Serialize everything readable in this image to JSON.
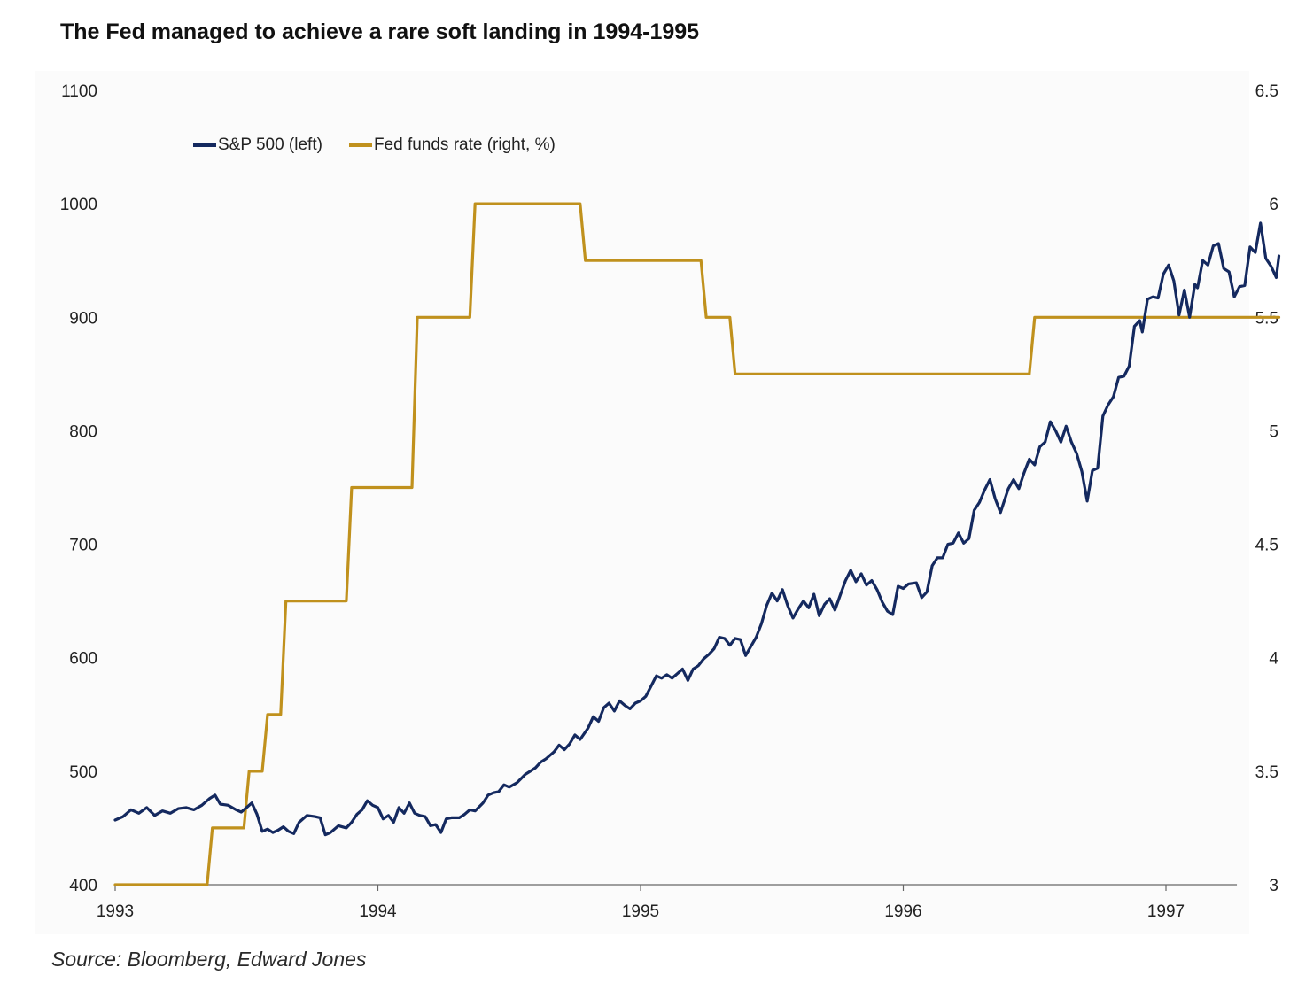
{
  "title": "The Fed managed to achieve a rare soft landing in 1994-1995",
  "source": "Source: Bloomberg, Edward Jones",
  "colors": {
    "sp500": "#14295f",
    "fed": "#c0911d",
    "axis": "#666666"
  },
  "chart_data": {
    "type": "line",
    "title": "The Fed managed to achieve a rare soft landing in 1994-1995",
    "legend_position": "top-left",
    "grid": false,
    "x_ticks": [
      "1993",
      "1994",
      "1995",
      "1996",
      "1997"
    ],
    "x_range": [
      1993.0,
      1997.27
    ],
    "y_left": {
      "range": [
        400,
        1100
      ],
      "ticks": [
        "400",
        "500",
        "600",
        "700",
        "800",
        "900",
        "1000",
        "1100"
      ]
    },
    "y_right": {
      "range": [
        3,
        6.5
      ],
      "ticks": [
        "3",
        "3.5",
        "4",
        "4.5",
        "5",
        "5.5",
        "6",
        "6.5"
      ]
    },
    "series": [
      {
        "name": "S&P 500 (left)",
        "axis": "left",
        "color": "#14295f",
        "points": [
          [
            1993.0,
            457
          ],
          [
            1993.03,
            460
          ],
          [
            1993.06,
            466
          ],
          [
            1993.09,
            463
          ],
          [
            1993.12,
            468
          ],
          [
            1993.15,
            461
          ],
          [
            1993.18,
            465
          ],
          [
            1993.21,
            463
          ],
          [
            1993.24,
            467
          ],
          [
            1993.27,
            468
          ],
          [
            1993.3,
            466
          ],
          [
            1993.33,
            470
          ],
          [
            1993.36,
            476
          ],
          [
            1993.38,
            479
          ],
          [
            1993.4,
            471
          ],
          [
            1993.43,
            470
          ],
          [
            1993.46,
            466
          ],
          [
            1993.48,
            464
          ],
          [
            1993.5,
            468
          ],
          [
            1993.52,
            472
          ],
          [
            1993.54,
            462
          ],
          [
            1993.56,
            447
          ],
          [
            1993.58,
            449
          ],
          [
            1993.6,
            446
          ],
          [
            1993.62,
            448
          ],
          [
            1993.64,
            451
          ],
          [
            1993.66,
            447
          ],
          [
            1993.68,
            445
          ],
          [
            1993.7,
            455
          ],
          [
            1993.73,
            461
          ],
          [
            1993.76,
            460
          ],
          [
            1993.78,
            459
          ],
          [
            1993.8,
            444
          ],
          [
            1993.82,
            446
          ],
          [
            1993.85,
            452
          ],
          [
            1993.88,
            450
          ],
          [
            1993.9,
            455
          ],
          [
            1993.92,
            462
          ],
          [
            1993.94,
            466
          ],
          [
            1993.96,
            474
          ],
          [
            1993.98,
            470
          ],
          [
            1994.0,
            468
          ],
          [
            1994.02,
            458
          ],
          [
            1994.04,
            461
          ],
          [
            1994.06,
            455
          ],
          [
            1994.08,
            468
          ],
          [
            1994.1,
            463
          ],
          [
            1994.12,
            472
          ],
          [
            1994.14,
            463
          ],
          [
            1994.16,
            461
          ],
          [
            1994.18,
            460
          ],
          [
            1994.2,
            452
          ],
          [
            1994.22,
            453
          ],
          [
            1994.24,
            446
          ],
          [
            1994.26,
            458
          ],
          [
            1994.28,
            459
          ],
          [
            1994.31,
            459
          ],
          [
            1994.33,
            462
          ],
          [
            1994.35,
            466
          ],
          [
            1994.37,
            465
          ],
          [
            1994.4,
            472
          ],
          [
            1994.42,
            479
          ],
          [
            1994.44,
            481
          ],
          [
            1994.46,
            482
          ],
          [
            1994.48,
            488
          ],
          [
            1994.5,
            486
          ],
          [
            1994.53,
            490
          ],
          [
            1994.56,
            497
          ],
          [
            1994.58,
            500
          ],
          [
            1994.6,
            503
          ],
          [
            1994.62,
            508
          ],
          [
            1994.64,
            511
          ],
          [
            1994.67,
            517
          ],
          [
            1994.69,
            523
          ],
          [
            1994.71,
            519
          ],
          [
            1994.73,
            524
          ],
          [
            1994.75,
            532
          ],
          [
            1994.77,
            528
          ],
          [
            1994.8,
            538
          ],
          [
            1994.82,
            548
          ],
          [
            1994.84,
            544
          ],
          [
            1994.86,
            556
          ],
          [
            1994.88,
            560
          ],
          [
            1994.9,
            553
          ],
          [
            1994.92,
            562
          ],
          [
            1994.94,
            558
          ],
          [
            1994.96,
            555
          ],
          [
            1994.98,
            560
          ],
          [
            1995.0,
            562
          ],
          [
            1995.02,
            566
          ],
          [
            1995.04,
            575
          ],
          [
            1995.06,
            584
          ],
          [
            1995.08,
            582
          ],
          [
            1995.1,
            585
          ],
          [
            1995.12,
            582
          ],
          [
            1995.14,
            586
          ],
          [
            1995.16,
            590
          ],
          [
            1995.18,
            580
          ],
          [
            1995.2,
            590
          ],
          [
            1995.22,
            593
          ],
          [
            1995.24,
            599
          ],
          [
            1995.26,
            603
          ],
          [
            1995.28,
            608
          ],
          [
            1995.3,
            618
          ],
          [
            1995.32,
            617
          ],
          [
            1995.34,
            611
          ],
          [
            1995.36,
            617
          ],
          [
            1995.38,
            616
          ],
          [
            1995.4,
            602
          ],
          [
            1995.42,
            610
          ],
          [
            1995.44,
            618
          ],
          [
            1995.46,
            630
          ],
          [
            1995.48,
            646
          ],
          [
            1995.5,
            657
          ],
          [
            1995.52,
            650
          ],
          [
            1995.54,
            660
          ],
          [
            1995.56,
            646
          ],
          [
            1995.58,
            635
          ],
          [
            1995.6,
            643
          ],
          [
            1995.62,
            650
          ],
          [
            1995.64,
            644
          ],
          [
            1995.66,
            656
          ],
          [
            1995.68,
            637
          ],
          [
            1995.7,
            647
          ],
          [
            1995.72,
            652
          ],
          [
            1995.74,
            642
          ],
          [
            1995.76,
            655
          ],
          [
            1995.78,
            668
          ],
          [
            1995.8,
            677
          ],
          [
            1995.82,
            667
          ],
          [
            1995.84,
            674
          ],
          [
            1995.86,
            664
          ],
          [
            1995.88,
            668
          ],
          [
            1995.9,
            660
          ],
          [
            1995.92,
            649
          ],
          [
            1995.94,
            641
          ],
          [
            1995.96,
            638
          ],
          [
            1995.98,
            663
          ],
          [
            1996.0,
            661
          ],
          [
            1996.02,
            665
          ],
          [
            1996.05,
            666
          ],
          [
            1996.07,
            653
          ],
          [
            1996.09,
            658
          ],
          [
            1996.11,
            681
          ],
          [
            1996.13,
            688
          ],
          [
            1996.15,
            688
          ],
          [
            1996.17,
            700
          ],
          [
            1996.19,
            701
          ],
          [
            1996.21,
            710
          ],
          [
            1996.23,
            701
          ],
          [
            1996.25,
            705
          ],
          [
            1996.27,
            730
          ],
          [
            1996.29,
            737
          ],
          [
            1996.31,
            748
          ],
          [
            1996.33,
            757
          ],
          [
            1996.35,
            740
          ],
          [
            1996.37,
            728
          ],
          [
            1996.4,
            749
          ],
          [
            1996.42,
            757
          ],
          [
            1996.44,
            749
          ],
          [
            1996.46,
            763
          ],
          [
            1996.48,
            775
          ],
          [
            1996.5,
            770
          ],
          [
            1996.52,
            786
          ],
          [
            1996.54,
            790
          ],
          [
            1996.56,
            808
          ],
          [
            1996.58,
            800
          ],
          [
            1996.6,
            790
          ],
          [
            1996.62,
            804
          ],
          [
            1996.64,
            790
          ],
          [
            1996.66,
            780
          ],
          [
            1996.68,
            764
          ],
          [
            1996.7,
            738
          ],
          [
            1996.72,
            765
          ],
          [
            1996.74,
            767
          ],
          [
            1996.76,
            813
          ],
          [
            1996.78,
            823
          ],
          [
            1996.8,
            830
          ],
          [
            1996.82,
            847
          ],
          [
            1996.84,
            848
          ],
          [
            1996.86,
            857
          ],
          [
            1996.88,
            892
          ],
          [
            1996.9,
            897
          ],
          [
            1996.91,
            887
          ],
          [
            1996.93,
            916
          ],
          [
            1996.95,
            918
          ],
          [
            1996.97,
            917
          ],
          [
            1996.99,
            938
          ],
          [
            1997.01,
            946
          ],
          [
            1997.03,
            932
          ],
          [
            1997.05,
            902
          ],
          [
            1997.07,
            924
          ],
          [
            1997.09,
            900
          ],
          [
            1997.11,
            929
          ],
          [
            1997.12,
            926
          ],
          [
            1997.14,
            950
          ],
          [
            1997.16,
            946
          ],
          [
            1997.18,
            963
          ],
          [
            1997.2,
            965
          ],
          [
            1997.22,
            943
          ],
          [
            1997.24,
            940
          ],
          [
            1997.26,
            918
          ],
          [
            1997.28,
            927
          ],
          [
            1997.3,
            928
          ],
          [
            1997.32,
            962
          ],
          [
            1997.34,
            957
          ],
          [
            1997.36,
            983
          ],
          [
            1997.38,
            952
          ],
          [
            1997.4,
            945
          ],
          [
            1997.42,
            935
          ],
          [
            1997.43,
            954
          ]
        ]
      },
      {
        "name": "Fed funds rate (right, %)",
        "axis": "right",
        "color": "#c0911d",
        "points": [
          [
            1993.0,
            3.0
          ],
          [
            1993.35,
            3.0
          ],
          [
            1993.37,
            3.25
          ],
          [
            1993.49,
            3.25
          ],
          [
            1993.51,
            3.5
          ],
          [
            1993.56,
            3.5
          ],
          [
            1993.58,
            3.75
          ],
          [
            1993.63,
            3.75
          ],
          [
            1993.65,
            4.25
          ],
          [
            1993.88,
            4.25
          ],
          [
            1993.9,
            4.75
          ],
          [
            1994.13,
            4.75
          ],
          [
            1994.15,
            5.5
          ],
          [
            1994.35,
            5.5
          ],
          [
            1994.37,
            6.0
          ],
          [
            1994.77,
            6.0
          ],
          [
            1994.79,
            5.75
          ],
          [
            1995.23,
            5.75
          ],
          [
            1995.25,
            5.5
          ],
          [
            1995.34,
            5.5
          ],
          [
            1995.36,
            5.25
          ],
          [
            1996.48,
            5.25
          ],
          [
            1996.5,
            5.5
          ],
          [
            1997.43,
            5.5
          ]
        ]
      }
    ]
  }
}
